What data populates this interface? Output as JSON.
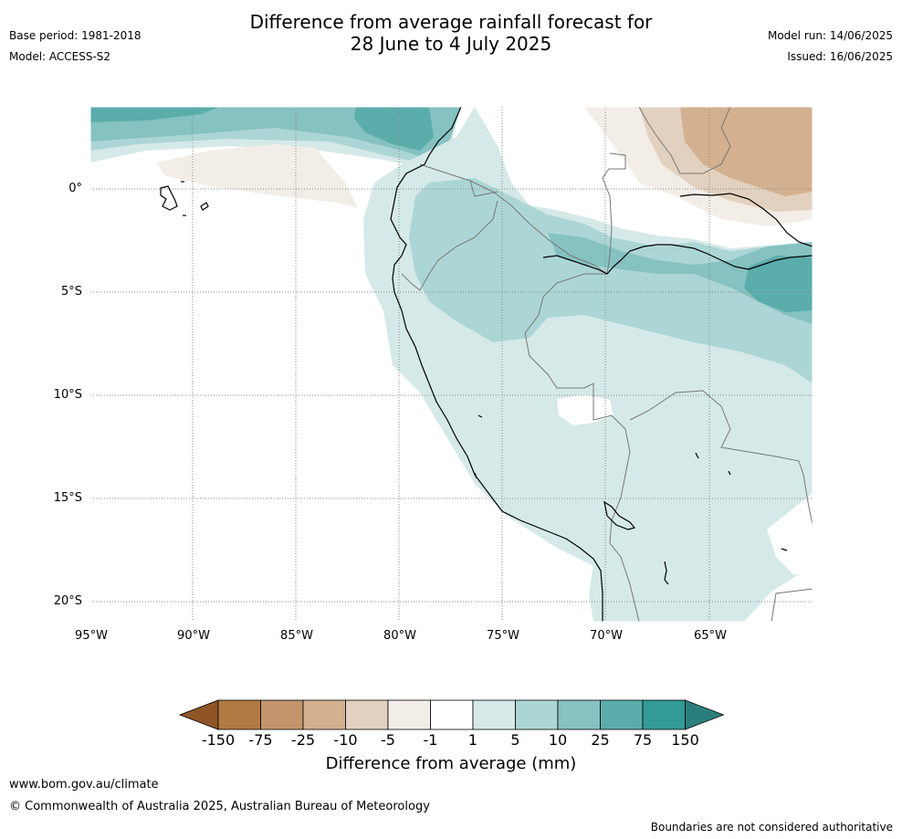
{
  "title": {
    "line1": "Difference from average rainfall forecast for",
    "line2": "28 June to 4 July 2025"
  },
  "meta_left": {
    "base_period": "Base period: 1981-2018",
    "model": "Model: ACCESS-S2"
  },
  "meta_right": {
    "model_run": "Model run: 14/06/2025",
    "issued": "Issued: 16/06/2025"
  },
  "map": {
    "latitude_labels": [
      "0°",
      "5°S",
      "10°S",
      "15°S",
      "20°S"
    ],
    "longitude_labels": [
      "95°W",
      "90°W",
      "85°W",
      "80°W",
      "75°W",
      "70°W",
      "65°W"
    ]
  },
  "colorbar": {
    "tick_labels": [
      "-150",
      "-75",
      "-25",
      "-10",
      "-5",
      "-1",
      "1",
      "5",
      "10",
      "25",
      "75",
      "150"
    ],
    "colors": [
      "#8f5527",
      "#b07a42",
      "#c4956c",
      "#d3b08f",
      "#e3d1bf",
      "#f2ede6",
      "#ffffff",
      "#d5e9e8",
      "#acd6d5",
      "#85c2c1",
      "#5aadab",
      "#339b97",
      "#2a7f7d"
    ],
    "label": "Difference from average (mm)"
  },
  "footer": {
    "url": "www.bom.gov.au/climate",
    "copyright": "© Commonwealth of Australia 2025, Australian Bureau of Meteorology",
    "disclaimer": "Boundaries are not considered authoritative"
  }
}
